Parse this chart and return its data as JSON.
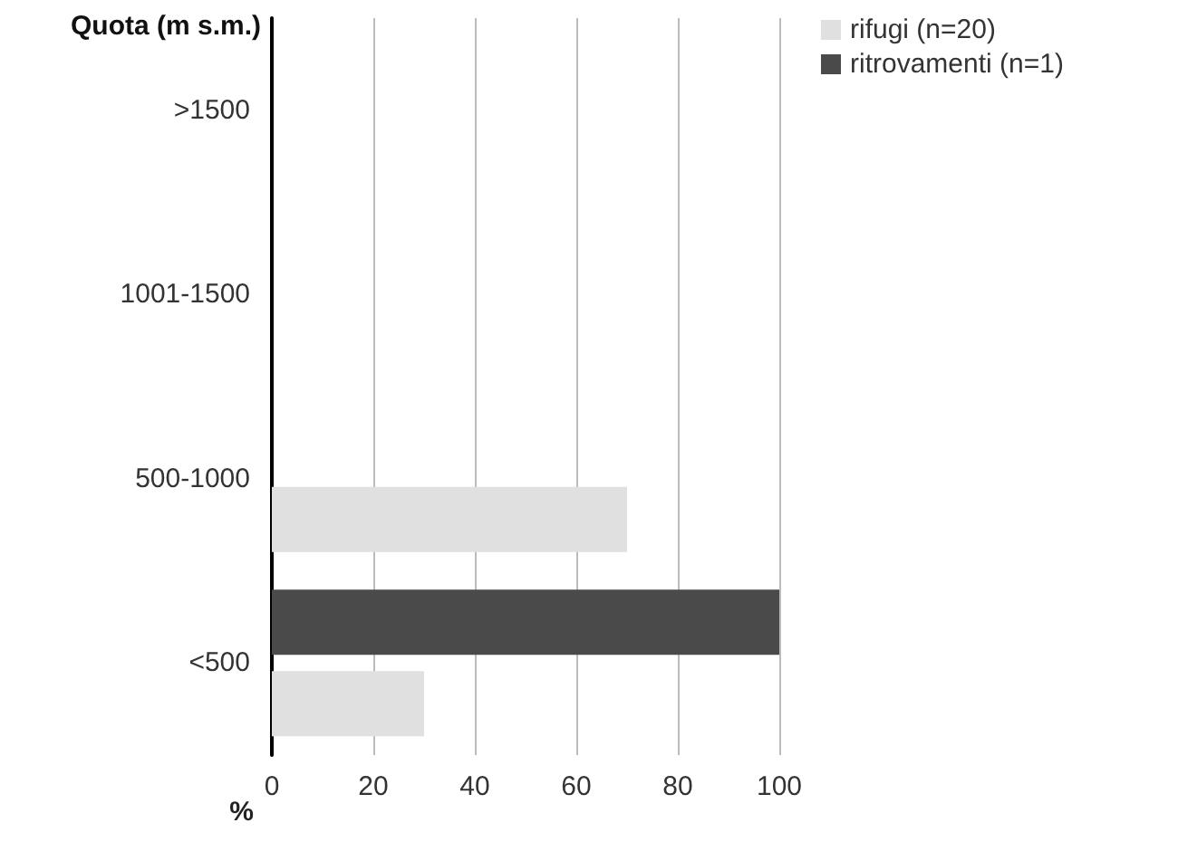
{
  "chart_data": {
    "type": "bar",
    "orientation": "horizontal",
    "ylabel": "Quota (m s.m.)",
    "xlabel": "%",
    "categories": [
      ">1500",
      "1001-1500",
      "500-1000",
      "<500"
    ],
    "series": [
      {
        "name": "rifugi (n=20)",
        "color": "#e0e0e0",
        "values": [
          0,
          0,
          70,
          30
        ]
      },
      {
        "name": "ritrovamenti (n=1)",
        "color": "#4a4a4a",
        "values": [
          0,
          0,
          0,
          100
        ]
      }
    ],
    "xlim": [
      0,
      100
    ],
    "xticks": [
      0,
      20,
      40,
      60,
      80,
      100
    ],
    "grid": "x",
    "legend": "top right"
  }
}
